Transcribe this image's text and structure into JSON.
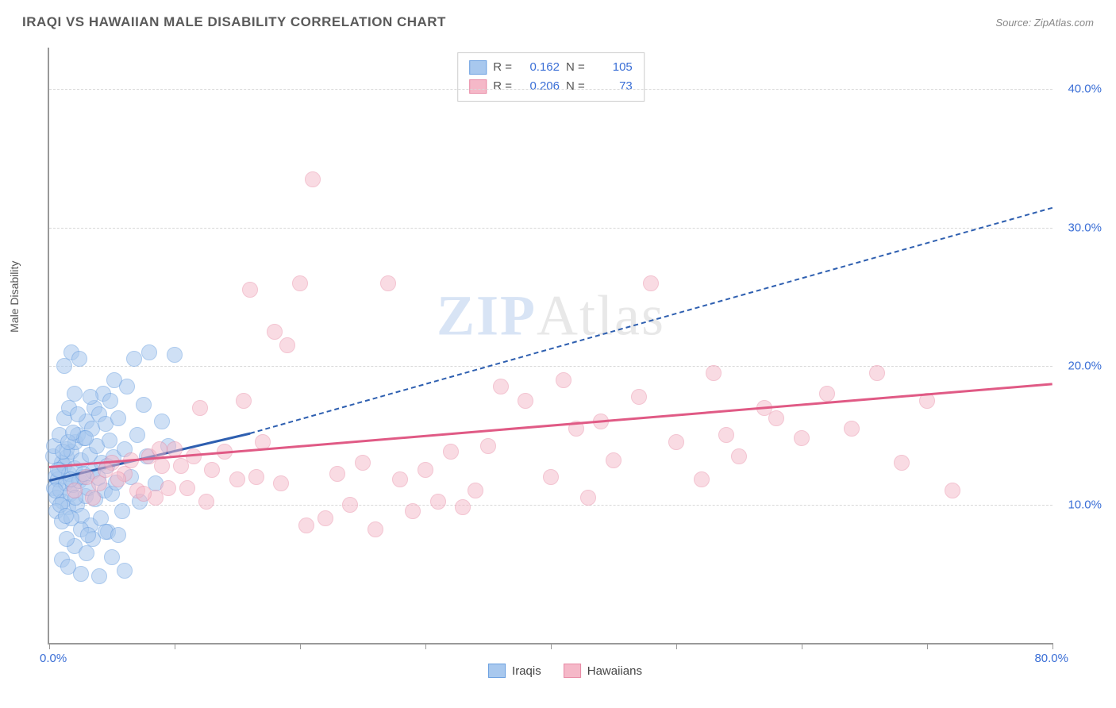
{
  "title": "IRAQI VS HAWAIIAN MALE DISABILITY CORRELATION CHART",
  "source_label": "Source:",
  "source_name": "ZipAtlas.com",
  "ylabel": "Male Disability",
  "watermark": "ZIPAtlas",
  "chart": {
    "type": "scatter",
    "xlim": [
      0,
      80
    ],
    "ylim": [
      0,
      43
    ],
    "x_start_label": "0.0%",
    "x_end_label": "80.0%",
    "x_ticks": [
      0,
      10,
      20,
      30,
      40,
      50,
      60,
      70,
      80
    ],
    "y_gridlines": [
      10,
      20,
      30,
      40
    ],
    "y_tick_labels": [
      "10.0%",
      "20.0%",
      "30.0%",
      "40.0%"
    ],
    "background_color": "#ffffff",
    "grid_color": "#d8d8d8",
    "axis_color": "#999999",
    "point_radius": 10,
    "series": [
      {
        "name": "Iraqis",
        "fill": "#a8c8ee",
        "stroke": "#6a9fe0",
        "fill_opacity": 0.55,
        "R": "0.162",
        "N": "105",
        "trend": {
          "x1": 0,
          "y1": 11.8,
          "x2": 16,
          "y2": 15.2,
          "solid_until_x": 16,
          "dash_to_x": 80,
          "dash_to_y": 31.5,
          "color": "#2e5fb0"
        },
        "points": [
          [
            0.4,
            11.2
          ],
          [
            0.5,
            12.0
          ],
          [
            0.6,
            10.5
          ],
          [
            0.7,
            11.8
          ],
          [
            0.8,
            12.5
          ],
          [
            0.9,
            11.0
          ],
          [
            1.0,
            13.0
          ],
          [
            1.1,
            10.2
          ],
          [
            1.2,
            12.8
          ],
          [
            1.3,
            11.5
          ],
          [
            1.4,
            13.4
          ],
          [
            1.5,
            9.8
          ],
          [
            1.4,
            14.0
          ],
          [
            1.6,
            12.2
          ],
          [
            1.7,
            10.8
          ],
          [
            1.8,
            13.8
          ],
          [
            1.9,
            11.4
          ],
          [
            2.0,
            12.6
          ],
          [
            2.1,
            14.5
          ],
          [
            2.2,
            10.0
          ],
          [
            2.3,
            15.0
          ],
          [
            2.4,
            11.7
          ],
          [
            2.5,
            13.2
          ],
          [
            2.6,
            9.2
          ],
          [
            2.7,
            12.0
          ],
          [
            2.8,
            14.8
          ],
          [
            2.9,
            10.6
          ],
          [
            3.0,
            16.0
          ],
          [
            3.1,
            11.2
          ],
          [
            3.2,
            13.6
          ],
          [
            3.3,
            8.5
          ],
          [
            3.4,
            15.5
          ],
          [
            3.5,
            12.4
          ],
          [
            3.6,
            17.0
          ],
          [
            3.7,
            10.4
          ],
          [
            3.8,
            14.2
          ],
          [
            3.9,
            11.9
          ],
          [
            4.0,
            16.5
          ],
          [
            4.1,
            9.0
          ],
          [
            4.2,
            13.0
          ],
          [
            4.3,
            18.0
          ],
          [
            4.4,
            11.0
          ],
          [
            4.5,
            15.8
          ],
          [
            4.6,
            12.8
          ],
          [
            4.7,
            8.0
          ],
          [
            4.8,
            14.6
          ],
          [
            4.9,
            17.5
          ],
          [
            5.0,
            10.8
          ],
          [
            5.1,
            13.4
          ],
          [
            5.2,
            19.0
          ],
          [
            5.3,
            11.6
          ],
          [
            5.5,
            16.2
          ],
          [
            5.8,
            9.5
          ],
          [
            6.0,
            14.0
          ],
          [
            6.2,
            18.5
          ],
          [
            6.5,
            12.0
          ],
          [
            6.8,
            20.5
          ],
          [
            7.0,
            15.0
          ],
          [
            7.2,
            10.2
          ],
          [
            7.5,
            17.2
          ],
          [
            7.8,
            13.5
          ],
          [
            8.0,
            21.0
          ],
          [
            8.5,
            11.5
          ],
          [
            9.0,
            16.0
          ],
          [
            9.5,
            14.2
          ],
          [
            10.0,
            20.8
          ],
          [
            1.0,
            6.0
          ],
          [
            1.5,
            5.5
          ],
          [
            2.0,
            7.0
          ],
          [
            2.5,
            5.0
          ],
          [
            3.0,
            6.5
          ],
          [
            3.5,
            7.5
          ],
          [
            4.0,
            4.8
          ],
          [
            4.5,
            8.0
          ],
          [
            5.0,
            6.2
          ],
          [
            5.5,
            7.8
          ],
          [
            6.0,
            5.2
          ],
          [
            1.2,
            20.0
          ],
          [
            1.8,
            21.0
          ],
          [
            2.4,
            20.5
          ],
          [
            0.3,
            13.5
          ],
          [
            0.4,
            14.2
          ],
          [
            0.6,
            9.5
          ],
          [
            0.8,
            15.0
          ],
          [
            1.0,
            8.8
          ],
          [
            1.2,
            16.2
          ],
          [
            1.4,
            7.5
          ],
          [
            1.6,
            17.0
          ],
          [
            1.8,
            9.0
          ],
          [
            2.0,
            18.0
          ],
          [
            0.5,
            11.0
          ],
          [
            0.7,
            12.5
          ],
          [
            0.9,
            10.0
          ],
          [
            1.1,
            13.8
          ],
          [
            1.3,
            9.2
          ],
          [
            1.5,
            14.5
          ],
          [
            1.7,
            11.8
          ],
          [
            1.9,
            15.2
          ],
          [
            2.1,
            10.5
          ],
          [
            2.3,
            16.5
          ],
          [
            2.5,
            8.2
          ],
          [
            2.7,
            12.2
          ],
          [
            2.9,
            14.8
          ],
          [
            3.1,
            7.8
          ],
          [
            3.3,
            17.8
          ]
        ]
      },
      {
        "name": "Hawaiians",
        "fill": "#f5b8c8",
        "stroke": "#e88aa5",
        "fill_opacity": 0.5,
        "R": "0.206",
        "N": "73",
        "trend": {
          "x1": 0,
          "y1": 12.8,
          "x2": 80,
          "y2": 18.8,
          "color": "#e05a85"
        },
        "points": [
          [
            3,
            12.0
          ],
          [
            4,
            11.5
          ],
          [
            5,
            13.0
          ],
          [
            6,
            12.2
          ],
          [
            7,
            11.0
          ],
          [
            8,
            13.5
          ],
          [
            8.5,
            10.5
          ],
          [
            9,
            12.8
          ],
          [
            10,
            14.0
          ],
          [
            11,
            11.2
          ],
          [
            12,
            17.0
          ],
          [
            13,
            12.5
          ],
          [
            14,
            13.8
          ],
          [
            15,
            11.8
          ],
          [
            15.5,
            17.5
          ],
          [
            16,
            25.5
          ],
          [
            16.5,
            12.0
          ],
          [
            17,
            14.5
          ],
          [
            18,
            22.5
          ],
          [
            18.5,
            11.5
          ],
          [
            19,
            21.5
          ],
          [
            20,
            26.0
          ],
          [
            20.5,
            8.5
          ],
          [
            21,
            33.5
          ],
          [
            22,
            9.0
          ],
          [
            23,
            12.2
          ],
          [
            24,
            10.0
          ],
          [
            25,
            13.0
          ],
          [
            26,
            8.2
          ],
          [
            27,
            26.0
          ],
          [
            28,
            11.8
          ],
          [
            29,
            9.5
          ],
          [
            30,
            12.5
          ],
          [
            31,
            10.2
          ],
          [
            32,
            13.8
          ],
          [
            33,
            9.8
          ],
          [
            34,
            11.0
          ],
          [
            35,
            14.2
          ],
          [
            36,
            18.5
          ],
          [
            38,
            17.5
          ],
          [
            40,
            12.0
          ],
          [
            41,
            19.0
          ],
          [
            42,
            15.5
          ],
          [
            43,
            10.5
          ],
          [
            44,
            16.0
          ],
          [
            45,
            13.2
          ],
          [
            47,
            17.8
          ],
          [
            48,
            26.0
          ],
          [
            50,
            14.5
          ],
          [
            52,
            11.8
          ],
          [
            53,
            19.5
          ],
          [
            54,
            15.0
          ],
          [
            55,
            13.5
          ],
          [
            57,
            17.0
          ],
          [
            58,
            16.2
          ],
          [
            60,
            14.8
          ],
          [
            62,
            18.0
          ],
          [
            64,
            15.5
          ],
          [
            66,
            19.5
          ],
          [
            68,
            13.0
          ],
          [
            70,
            17.5
          ],
          [
            72,
            11.0
          ],
          [
            2,
            11.0
          ],
          [
            3.5,
            10.5
          ],
          [
            4.5,
            12.5
          ],
          [
            5.5,
            11.8
          ],
          [
            6.5,
            13.2
          ],
          [
            7.5,
            10.8
          ],
          [
            8.8,
            14.0
          ],
          [
            9.5,
            11.2
          ],
          [
            10.5,
            12.8
          ],
          [
            11.5,
            13.5
          ],
          [
            12.5,
            10.2
          ]
        ]
      }
    ]
  },
  "stat_box": {
    "rows": [
      {
        "swatch_fill": "#a8c8ee",
        "swatch_stroke": "#6a9fe0",
        "R": "0.162",
        "N": "105"
      },
      {
        "swatch_fill": "#f5b8c8",
        "swatch_stroke": "#e88aa5",
        "R": "0.206",
        "N": "73"
      }
    ]
  },
  "bottom_legend": [
    {
      "label": "Iraqis",
      "fill": "#a8c8ee",
      "stroke": "#6a9fe0"
    },
    {
      "label": "Hawaiians",
      "fill": "#f5b8c8",
      "stroke": "#e88aa5"
    }
  ]
}
